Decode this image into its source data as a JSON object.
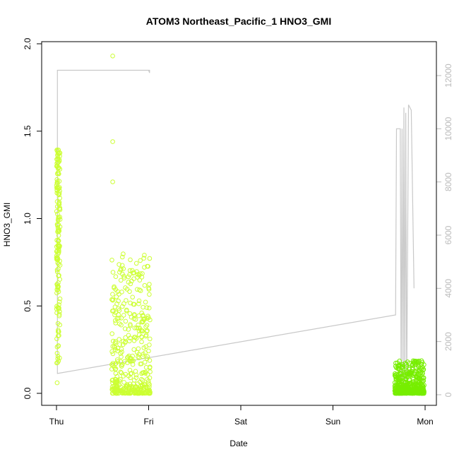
{
  "chart_data": {
    "type": "scatter",
    "title": "ATOM3 Northeast_Pacific_1 HNO3_GMI",
    "xlabel": "Date",
    "ylabel": "HNO3_GMI",
    "x_ticks": [
      "Thu",
      "Fri",
      "Sat",
      "Sun",
      "Mon"
    ],
    "x_range_days": [
      0,
      4.08
    ],
    "y_ticks": [
      "0.0",
      "0.5",
      "1.0",
      "1.5",
      "2.0"
    ],
    "y_ticks_values": [
      0,
      0.5,
      1,
      1.5,
      2
    ],
    "ylim": [
      -0.07,
      2.0
    ],
    "y2_ticks": [
      "0",
      "2000",
      "4000",
      "6000",
      "8000",
      "10000",
      "12000"
    ],
    "y2_ticks_values": [
      0,
      2000,
      4000,
      6000,
      8000,
      10000,
      12000
    ],
    "y2lim": [
      -500,
      12800
    ],
    "grid": false,
    "colors": {
      "points_early": "#ccff33",
      "points_late": "#77ee00",
      "altitude_line": "#c8c8c8",
      "frame": "#000000"
    },
    "series": [
      {
        "kind": "altitude_line",
        "points": [
          [
            0.01,
            12200
          ],
          [
            0.01,
            800
          ],
          [
            0.01,
            12200
          ],
          [
            1.0,
            12200
          ],
          [
            1.01,
            12100
          ],
          [
            1.01,
            12200
          ],
          [
            0.01,
            12200
          ],
          [
            0.01,
            800
          ],
          [
            3.68,
            3000
          ],
          [
            3.69,
            10000
          ],
          [
            3.73,
            10000
          ],
          [
            3.74,
            0
          ],
          [
            3.75,
            10000
          ],
          [
            3.76,
            0
          ],
          [
            3.77,
            10800
          ],
          [
            3.78,
            0
          ],
          [
            3.79,
            10600
          ],
          [
            3.8,
            0
          ],
          [
            3.82,
            10900
          ],
          [
            3.85,
            10700
          ],
          [
            3.88,
            4000
          ]
        ]
      },
      {
        "kind": "scatter",
        "clusters": [
          {
            "x_start": 0.0,
            "x_end": 0.04,
            "y_min": 0.04,
            "y_max": 1.4,
            "count": 160
          },
          {
            "x_start": 0.6,
            "x_end": 1.02,
            "y_min": 0.0,
            "y_max": 0.8,
            "count": 420
          },
          {
            "x_start": 3.67,
            "x_end": 3.99,
            "y_min": 0.0,
            "y_max": 0.19,
            "count": 420
          }
        ],
        "outliers": [
          [
            0.61,
            1.93
          ],
          [
            0.61,
            1.44
          ],
          [
            0.61,
            1.21
          ]
        ]
      }
    ]
  }
}
